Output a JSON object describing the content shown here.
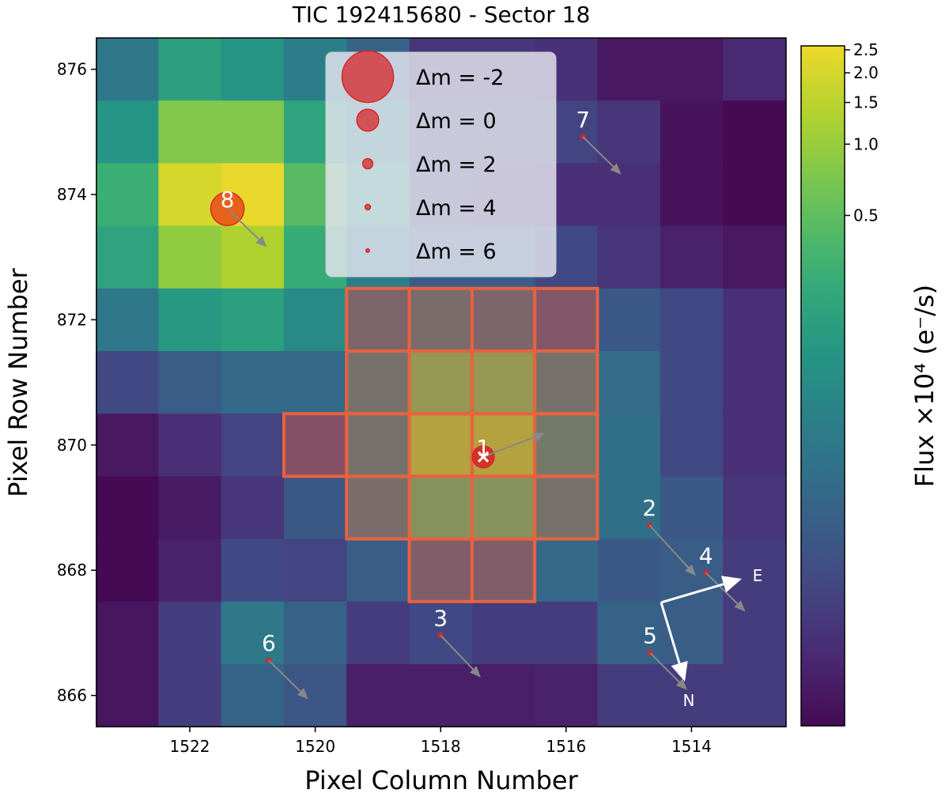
{
  "chart_data": {
    "type": "heatmap",
    "title": "TIC 192415680 - Sector 18",
    "xlabel": "Pixel Column Number",
    "ylabel": "Pixel Row Number",
    "colorbar_label": "Flux ×10⁴ (e⁻/s)",
    "colormap": "viridis",
    "color_scale": "log",
    "clim": [
      0.0035,
      2.6
    ],
    "colorbar_ticks": [
      2.5,
      2.0,
      1.5,
      1.0,
      0.5
    ],
    "colorbar_tick_labels": [
      "2.5",
      "2.0",
      "1.5",
      "1.0",
      "0.5"
    ],
    "x_ticks": [
      1522,
      1520,
      1518,
      1516,
      1514
    ],
    "x_tick_labels": [
      "1522",
      "1520",
      "1518",
      "1516",
      "1514"
    ],
    "y_ticks": [
      876,
      874,
      872,
      870,
      868,
      866
    ],
    "y_tick_labels": [
      "876",
      "874",
      "872",
      "870",
      "868",
      "866"
    ],
    "x_inverted": true,
    "columns": [
      1523,
      1522,
      1521,
      1520,
      1519,
      1518,
      1517,
      1516,
      1515,
      1514,
      1513
    ],
    "rows": [
      876,
      875,
      874,
      873,
      872,
      871,
      870,
      869,
      868,
      867,
      866
    ],
    "values": [
      [
        0.055,
        0.178,
        0.128,
        0.066,
        0.03,
        0.0093,
        0.0093,
        0.0081,
        0.0048,
        0.0048,
        0.0067
      ],
      [
        0.128,
        0.76,
        0.76,
        0.204,
        0.092,
        0.0128,
        0.0128,
        0.0128,
        0.0093,
        0.0042,
        0.0035
      ],
      [
        0.3,
        2.03,
        2.48,
        0.45,
        0.178,
        0.0128,
        0.0093,
        0.0076,
        0.0076,
        0.0042,
        0.0035
      ],
      [
        0.204,
        0.92,
        1.28,
        0.265,
        0.066,
        0.0249,
        0.0249,
        0.0147,
        0.0093,
        0.0058,
        0.0048
      ],
      [
        0.055,
        0.147,
        0.178,
        0.092,
        0.03,
        0.048,
        0.0345,
        0.0178,
        0.0217,
        0.0147,
        0.0076
      ],
      [
        0.0147,
        0.0249,
        0.0345,
        0.0345,
        0.066,
        0.48,
        0.48,
        0.066,
        0.0368,
        0.0147,
        0.0076
      ],
      [
        0.0048,
        0.0076,
        0.0128,
        0.0128,
        0.066,
        0.92,
        0.92,
        0.092,
        0.042,
        0.0147,
        0.0076
      ],
      [
        0.0035,
        0.0051,
        0.0093,
        0.0217,
        0.048,
        0.344,
        0.344,
        0.066,
        0.042,
        0.0217,
        0.0093
      ],
      [
        0.0035,
        0.0058,
        0.0147,
        0.0128,
        0.0249,
        0.0249,
        0.0249,
        0.0345,
        0.0217,
        0.0249,
        0.0105
      ],
      [
        0.0045,
        0.0112,
        0.055,
        0.0282,
        0.0105,
        0.0147,
        0.0105,
        0.0105,
        0.0282,
        0.0249,
        0.0105
      ],
      [
        0.0045,
        0.0112,
        0.03,
        0.0204,
        0.0055,
        0.0055,
        0.0055,
        0.0058,
        0.0105,
        0.0105,
        0.0105
      ]
    ],
    "aperture": [
      [
        872,
        1519
      ],
      [
        872,
        1518
      ],
      [
        872,
        1517
      ],
      [
        872,
        1516
      ],
      [
        871,
        1519
      ],
      [
        871,
        1518
      ],
      [
        871,
        1517
      ],
      [
        871,
        1516
      ],
      [
        870,
        1520
      ],
      [
        870,
        1519
      ],
      [
        870,
        1518
      ],
      [
        870,
        1517
      ],
      [
        870,
        1516
      ],
      [
        869,
        1519
      ],
      [
        869,
        1518
      ],
      [
        869,
        1517
      ],
      [
        869,
        1516
      ],
      [
        868,
        1518
      ],
      [
        868,
        1517
      ]
    ],
    "aperture_color": "#e8623f",
    "star_color": "#d62728",
    "stars": [
      {
        "id": "1",
        "col": 1517.32,
        "row": 869.81,
        "dmag": 0,
        "pm_end_col": 1516.34,
        "pm_end_row": 870.19,
        "target": true
      },
      {
        "id": "2",
        "col": 1514.67,
        "row": 868.72,
        "dmag": 5,
        "pm_end_col": 1513.93,
        "pm_end_row": 867.91
      },
      {
        "id": "3",
        "col": 1518.0,
        "row": 866.96,
        "dmag": 5,
        "pm_end_col": 1517.36,
        "pm_end_row": 866.29
      },
      {
        "id": "4",
        "col": 1513.77,
        "row": 867.96,
        "dmag": 5,
        "pm_end_col": 1513.14,
        "pm_end_row": 867.34
      },
      {
        "id": "5",
        "col": 1514.66,
        "row": 866.68,
        "dmag": 5,
        "pm_end_col": 1514.07,
        "pm_end_row": 866.09
      },
      {
        "id": "6",
        "col": 1520.74,
        "row": 866.56,
        "dmag": 5,
        "pm_end_col": 1520.11,
        "pm_end_row": 865.94
      },
      {
        "id": "7",
        "col": 1515.73,
        "row": 874.92,
        "dmag": 5,
        "pm_end_col": 1515.12,
        "pm_end_row": 874.32
      },
      {
        "id": "8",
        "col": 1521.4,
        "row": 873.77,
        "dmag": -1,
        "pm_end_col": 1520.77,
        "pm_end_row": 873.16
      }
    ],
    "legend": {
      "placement": "top-center",
      "entries": [
        {
          "label": "Δm =  -2",
          "dmag": -2
        },
        {
          "label": "Δm =  0",
          "dmag": 0
        },
        {
          "label": "Δm =  2",
          "dmag": 2
        },
        {
          "label": "Δm =  4",
          "dmag": 4
        },
        {
          "label": "Δm =  6",
          "dmag": 6
        }
      ]
    },
    "compass": {
      "east_label": "E",
      "north_label": "N"
    }
  }
}
